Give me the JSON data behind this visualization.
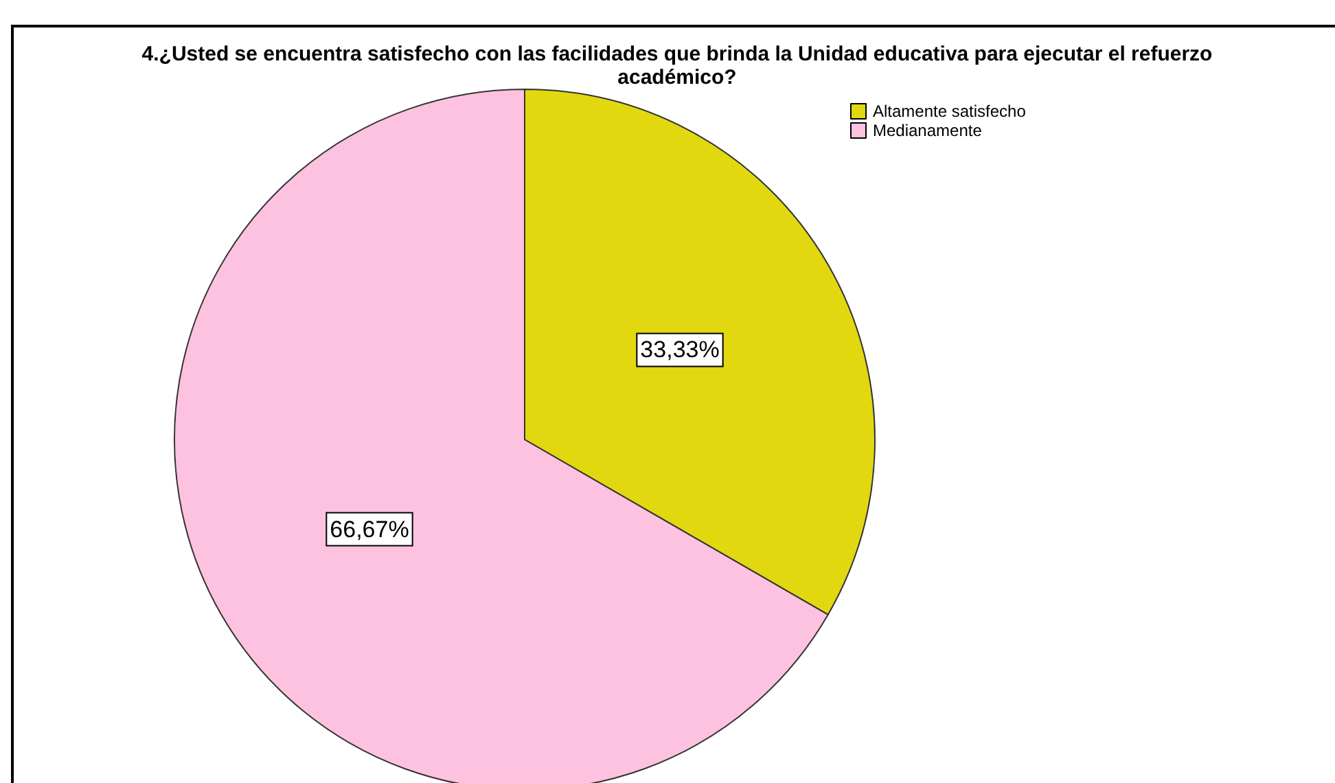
{
  "chart_data": {
    "type": "pie",
    "title": "4.¿Usted se encuentra satisfecho con las facilidades que brinda la Unidad educativa para ejecutar el refuerzo\nacadémico?",
    "categories": [
      "Altamente satisfecho",
      "Medianamente"
    ],
    "values": [
      33.33,
      66.67
    ],
    "value_labels": [
      "33,33%",
      "66,67%"
    ],
    "colors": [
      "#e2d810",
      "#fdc2e0"
    ],
    "legend": "top right"
  }
}
